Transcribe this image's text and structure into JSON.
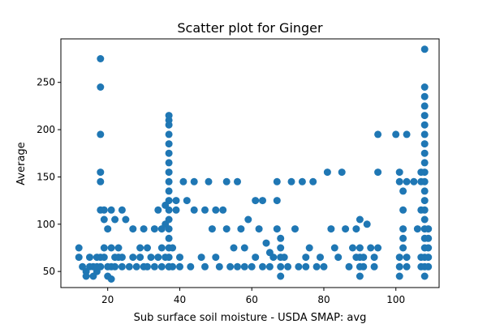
{
  "chart_data": {
    "type": "scatter",
    "title": "Scatter plot for Ginger",
    "xlabel": "Sub surface soil moisture - USDA SMAP: avg",
    "ylabel": "Average",
    "xlim": [
      7,
      112
    ],
    "ylim": [
      33,
      296
    ],
    "xticks": [
      20,
      40,
      60,
      80,
      100
    ],
    "yticks": [
      50,
      100,
      150,
      200,
      250
    ],
    "grid": false,
    "legend": "none",
    "marker_color": "#1f77b4",
    "points": [
      [
        12,
        75
      ],
      [
        12,
        65
      ],
      [
        13,
        55
      ],
      [
        14,
        50
      ],
      [
        14,
        45
      ],
      [
        15,
        55
      ],
      [
        15,
        65
      ],
      [
        16,
        55
      ],
      [
        16,
        45
      ],
      [
        17,
        65
      ],
      [
        17,
        50
      ],
      [
        17,
        55
      ],
      [
        18,
        115
      ],
      [
        18,
        195
      ],
      [
        18,
        245
      ],
      [
        18,
        275
      ],
      [
        18,
        155
      ],
      [
        18,
        145
      ],
      [
        18,
        65
      ],
      [
        18,
        55
      ],
      [
        19,
        115
      ],
      [
        19,
        105
      ],
      [
        19,
        75
      ],
      [
        19,
        65
      ],
      [
        20,
        95
      ],
      [
        20,
        55
      ],
      [
        20,
        45
      ],
      [
        21,
        115
      ],
      [
        21,
        75
      ],
      [
        21,
        55
      ],
      [
        21,
        42
      ],
      [
        22,
        105
      ],
      [
        22,
        65
      ],
      [
        22,
        55
      ],
      [
        23,
        75
      ],
      [
        23,
        65
      ],
      [
        24,
        115
      ],
      [
        24,
        65
      ],
      [
        24,
        55
      ],
      [
        25,
        105
      ],
      [
        26,
        55
      ],
      [
        27,
        65
      ],
      [
        27,
        95
      ],
      [
        28,
        55
      ],
      [
        29,
        75
      ],
      [
        29,
        65
      ],
      [
        30,
        55
      ],
      [
        30,
        95
      ],
      [
        31,
        75
      ],
      [
        31,
        55
      ],
      [
        32,
        65
      ],
      [
        33,
        55
      ],
      [
        33,
        95
      ],
      [
        34,
        115
      ],
      [
        34,
        65
      ],
      [
        35,
        55
      ],
      [
        35,
        95
      ],
      [
        35,
        75
      ],
      [
        36,
        120
      ],
      [
        36,
        100
      ],
      [
        36,
        65
      ],
      [
        37,
        55
      ],
      [
        37,
        75
      ],
      [
        37,
        95
      ],
      [
        37,
        125
      ],
      [
        37,
        135
      ],
      [
        37,
        145
      ],
      [
        37,
        155
      ],
      [
        37,
        165
      ],
      [
        37,
        175
      ],
      [
        37,
        185
      ],
      [
        37,
        195
      ],
      [
        37,
        205
      ],
      [
        37,
        210
      ],
      [
        37,
        215
      ],
      [
        37,
        115
      ],
      [
        37,
        105
      ],
      [
        37,
        85
      ],
      [
        37,
        65
      ],
      [
        37,
        55
      ],
      [
        38,
        75
      ],
      [
        38,
        55
      ],
      [
        39,
        125
      ],
      [
        39,
        115
      ],
      [
        40,
        65
      ],
      [
        40,
        55
      ],
      [
        41,
        145
      ],
      [
        42,
        125
      ],
      [
        43,
        55
      ],
      [
        44,
        145
      ],
      [
        44,
        115
      ],
      [
        46,
        65
      ],
      [
        47,
        115
      ],
      [
        47,
        55
      ],
      [
        48,
        145
      ],
      [
        49,
        95
      ],
      [
        50,
        65
      ],
      [
        50,
        115
      ],
      [
        51,
        55
      ],
      [
        52,
        115
      ],
      [
        53,
        145
      ],
      [
        53,
        95
      ],
      [
        54,
        55
      ],
      [
        55,
        75
      ],
      [
        56,
        145
      ],
      [
        56,
        55
      ],
      [
        57,
        95
      ],
      [
        58,
        55
      ],
      [
        58,
        75
      ],
      [
        59,
        105
      ],
      [
        60,
        55
      ],
      [
        61,
        125
      ],
      [
        61,
        65
      ],
      [
        62,
        95
      ],
      [
        63,
        125
      ],
      [
        63,
        55
      ],
      [
        64,
        80
      ],
      [
        65,
        70
      ],
      [
        65,
        55
      ],
      [
        66,
        65
      ],
      [
        67,
        145
      ],
      [
        67,
        125
      ],
      [
        67,
        95
      ],
      [
        68,
        85
      ],
      [
        68,
        75
      ],
      [
        68,
        65
      ],
      [
        68,
        55
      ],
      [
        68,
        45
      ],
      [
        69,
        65
      ],
      [
        70,
        55
      ],
      [
        71,
        145
      ],
      [
        72,
        95
      ],
      [
        73,
        55
      ],
      [
        74,
        145
      ],
      [
        75,
        65
      ],
      [
        75,
        55
      ],
      [
        76,
        75
      ],
      [
        77,
        145
      ],
      [
        78,
        55
      ],
      [
        79,
        65
      ],
      [
        80,
        55
      ],
      [
        81,
        155
      ],
      [
        82,
        95
      ],
      [
        83,
        75
      ],
      [
        84,
        65
      ],
      [
        85,
        155
      ],
      [
        86,
        95
      ],
      [
        87,
        55
      ],
      [
        88,
        75
      ],
      [
        89,
        65
      ],
      [
        89,
        95
      ],
      [
        90,
        105
      ],
      [
        90,
        75
      ],
      [
        90,
        65
      ],
      [
        90,
        55
      ],
      [
        90,
        45
      ],
      [
        91,
        65
      ],
      [
        91,
        55
      ],
      [
        92,
        100
      ],
      [
        93,
        75
      ],
      [
        94,
        65
      ],
      [
        94,
        55
      ],
      [
        95,
        155
      ],
      [
        95,
        195
      ],
      [
        95,
        75
      ],
      [
        100,
        195
      ],
      [
        101,
        155
      ],
      [
        101,
        145
      ],
      [
        101,
        65
      ],
      [
        101,
        55
      ],
      [
        101,
        45
      ],
      [
        102,
        135
      ],
      [
        102,
        115
      ],
      [
        102,
        95
      ],
      [
        102,
        85
      ],
      [
        102,
        75
      ],
      [
        103,
        195
      ],
      [
        103,
        145
      ],
      [
        103,
        65
      ],
      [
        103,
        55
      ],
      [
        105,
        145
      ],
      [
        106,
        95
      ],
      [
        107,
        155
      ],
      [
        107,
        145
      ],
      [
        107,
        115
      ],
      [
        107,
        65
      ],
      [
        107,
        55
      ],
      [
        108,
        285
      ],
      [
        108,
        245
      ],
      [
        108,
        235
      ],
      [
        108,
        225
      ],
      [
        108,
        215
      ],
      [
        108,
        205
      ],
      [
        108,
        195
      ],
      [
        108,
        185
      ],
      [
        108,
        175
      ],
      [
        108,
        165
      ],
      [
        108,
        155
      ],
      [
        108,
        145
      ],
      [
        108,
        135
      ],
      [
        108,
        125
      ],
      [
        108,
        115
      ],
      [
        108,
        105
      ],
      [
        108,
        95
      ],
      [
        108,
        85
      ],
      [
        108,
        75
      ],
      [
        108,
        65
      ],
      [
        108,
        55
      ],
      [
        108,
        45
      ],
      [
        109,
        95
      ],
      [
        109,
        85
      ],
      [
        109,
        75
      ],
      [
        109,
        65
      ],
      [
        109,
        55
      ]
    ]
  }
}
